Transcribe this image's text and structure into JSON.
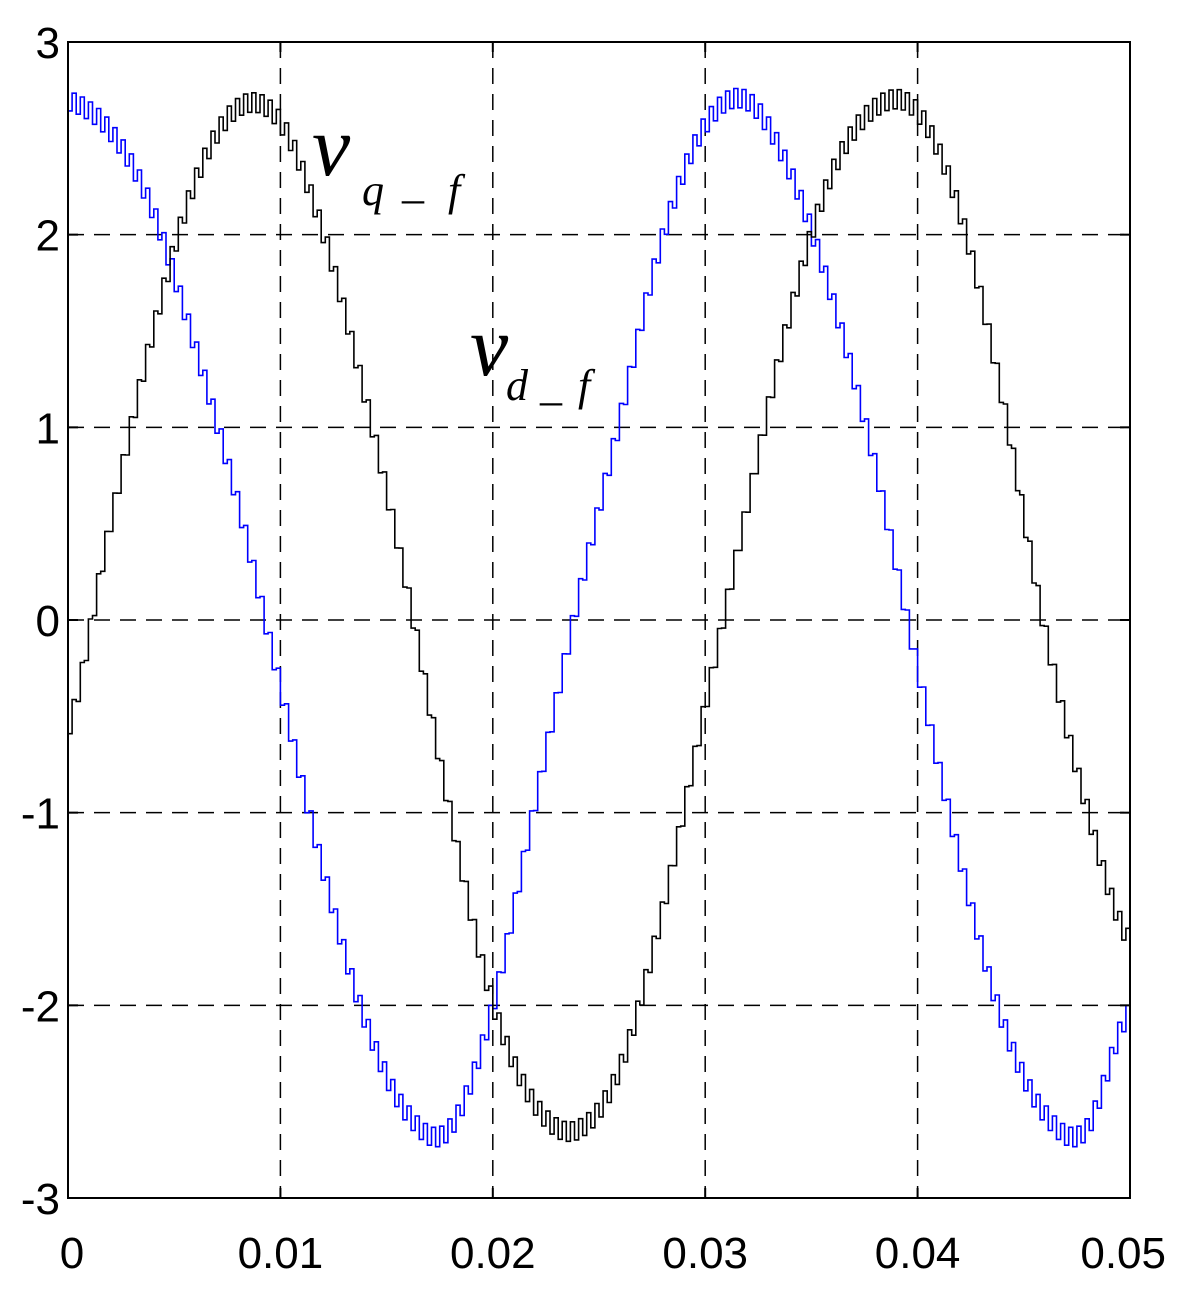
{
  "chart_data": {
    "type": "line",
    "title": "",
    "xlabel": "",
    "ylabel": "",
    "xlim": [
      0,
      0.05
    ],
    "ylim": [
      -3,
      3
    ],
    "grid": true,
    "grid_style": "dashed",
    "x_ticks": [
      {
        "value": 0,
        "label": "0"
      },
      {
        "value": 0.01,
        "label": "0.01"
      },
      {
        "value": 0.02,
        "label": "0.02"
      },
      {
        "value": 0.03,
        "label": "0.03"
      },
      {
        "value": 0.04,
        "label": "0.04"
      },
      {
        "value": 0.05,
        "label": "0.05"
      }
    ],
    "y_ticks": [
      {
        "value": 3,
        "label": "3"
      },
      {
        "value": 2,
        "label": "2"
      },
      {
        "value": 1,
        "label": "1"
      },
      {
        "value": 0,
        "label": "0"
      },
      {
        "value": -1,
        "label": "-1"
      },
      {
        "value": -2,
        "label": "-2"
      },
      {
        "value": -3,
        "label": "-3"
      }
    ],
    "series": [
      {
        "color": "#0000ff",
        "x": [
          0,
          0.002,
          0.004,
          0.006,
          0.008,
          0.01,
          0.012,
          0.014,
          0.016,
          0.018,
          0.02,
          0.022,
          0.024,
          0.026,
          0.028,
          0.03,
          0.032,
          0.034,
          0.036,
          0.038,
          0.04,
          0.042,
          0.044,
          0.046,
          0.048,
          0.05
        ],
        "y": [
          2.7,
          2.55,
          2.15,
          1.45,
          0.65,
          -0.3,
          -1.25,
          -2.05,
          -2.55,
          -2.65,
          -2.05,
          -1.0,
          0.05,
          1.0,
          1.95,
          2.55,
          2.7,
          2.35,
          1.7,
          0.85,
          -0.2,
          -1.2,
          -2.05,
          -2.55,
          -2.65,
          -2.05
        ]
      },
      {
        "color": "#000000",
        "x": [
          0,
          0.002,
          0.004,
          0.006,
          0.008,
          0.01,
          0.012,
          0.014,
          0.016,
          0.018,
          0.02,
          0.022,
          0.024,
          0.026,
          0.028,
          0.03,
          0.032,
          0.034,
          0.036,
          0.038,
          0.04,
          0.042,
          0.044,
          0.046,
          0.048,
          0.05
        ],
        "y": [
          -0.6,
          0.45,
          1.45,
          2.25,
          2.65,
          2.6,
          2.05,
          1.2,
          0.2,
          -0.95,
          -1.95,
          -2.5,
          -2.65,
          -2.35,
          -1.55,
          -0.5,
          0.55,
          1.55,
          2.3,
          2.65,
          2.65,
          2.15,
          1.2,
          0.0,
          -0.95,
          -1.65
        ]
      }
    ],
    "annotations": [
      {
        "main": "v",
        "sub": "q",
        "sep": "_",
        "sub2": "f"
      },
      {
        "main": "v",
        "sub": "d",
        "sep": "_",
        "sub2": "f"
      }
    ]
  }
}
